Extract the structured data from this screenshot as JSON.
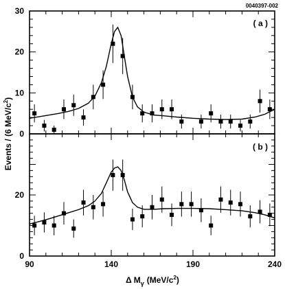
{
  "figure_id": "0040397-002",
  "ylabel_main": "Events / (6 MeV/c",
  "ylabel_sup": "2",
  "ylabel_close": ")",
  "xlabel_delta": "Δ",
  "xlabel_M": "M",
  "xlabel_sub": "γ",
  "xlabel_units": "(MeV/c",
  "xlabel_sup": "2",
  "xlabel_close": ")",
  "colors": {
    "ink": "#000000",
    "errorbar": "#000000",
    "marker": "#000000"
  },
  "chart_data": [
    {
      "type": "scatter",
      "panel_label": "( a )",
      "xlim": [
        90,
        240
      ],
      "ylim": [
        0,
        30
      ],
      "y_ticks": [
        "0",
        "10",
        "20",
        "30"
      ],
      "x": [
        93,
        99,
        105,
        111,
        117,
        123,
        129,
        135,
        141,
        147,
        153,
        159,
        165,
        171,
        177,
        183,
        189,
        195,
        201,
        207,
        213,
        219,
        225,
        231,
        237
      ],
      "series": [
        {
          "values": [
            5,
            2,
            1,
            6,
            7,
            4,
            9,
            12,
            22,
            19,
            9,
            5,
            5,
            6,
            6,
            3,
            null,
            3,
            5,
            3,
            3,
            2,
            3,
            8,
            6
          ],
          "errors": [
            2.2,
            1.4,
            1.0,
            2.4,
            2.6,
            2.0,
            3.0,
            3.5,
            4.7,
            4.4,
            3.0,
            2.2,
            2.2,
            2.4,
            2.4,
            1.7,
            null,
            1.7,
            2.2,
            1.7,
            1.7,
            1.4,
            1.7,
            2.8,
            2.4
          ]
        }
      ],
      "fit_curve": {
        "x": [
          90,
          96,
          102,
          108,
          114,
          120,
          126,
          130,
          134,
          137,
          140,
          142,
          144,
          146,
          148,
          150,
          153,
          156,
          160,
          166,
          172,
          180,
          190,
          200,
          210,
          220,
          228,
          234,
          240
        ],
        "y": [
          3.8,
          4.2,
          4.6,
          5.0,
          5.5,
          6.2,
          7.5,
          9.2,
          12.5,
          16.5,
          22.0,
          25.0,
          26.0,
          24.0,
          19.0,
          14.0,
          9.0,
          6.6,
          5.3,
          4.6,
          4.4,
          4.1,
          3.8,
          3.6,
          3.5,
          3.6,
          4.1,
          4.8,
          6.0
        ]
      }
    },
    {
      "type": "scatter",
      "panel_label": "( b )",
      "xlim": [
        90,
        240
      ],
      "ylim": [
        0,
        40
      ],
      "y_ticks": [
        "0",
        "20"
      ],
      "x": [
        93,
        99,
        105,
        111,
        117,
        123,
        129,
        135,
        141,
        147,
        153,
        159,
        165,
        171,
        177,
        183,
        189,
        195,
        201,
        207,
        213,
        219,
        225,
        231,
        237
      ],
      "series": [
        {
          "values": [
            10,
            11,
            10,
            14,
            9,
            17.5,
            16,
            17,
            26.5,
            26.5,
            12,
            13,
            16,
            18.5,
            13.5,
            17,
            17,
            15,
            10,
            18.5,
            17.5,
            17,
            13,
            14.5,
            13.5
          ],
          "errors": [
            3.2,
            3.3,
            3.2,
            3.7,
            3.0,
            4.2,
            4.0,
            4.1,
            5.1,
            5.1,
            3.5,
            3.6,
            4.0,
            4.3,
            3.7,
            4.1,
            4.1,
            3.9,
            3.2,
            4.3,
            4.2,
            4.1,
            3.6,
            3.8,
            3.7
          ]
        }
      ],
      "fit_curve": {
        "x": [
          90,
          96,
          102,
          108,
          114,
          120,
          126,
          130,
          134,
          137,
          140,
          142,
          144,
          146,
          148,
          150,
          153,
          156,
          160,
          166,
          172,
          180,
          190,
          200,
          210,
          220,
          228,
          234,
          240
        ],
        "y": [
          10.5,
          11.3,
          12.2,
          13.2,
          14.2,
          15.2,
          16.5,
          18.0,
          20.5,
          24.0,
          27.5,
          28.8,
          29.2,
          28.0,
          25.0,
          21.0,
          17.5,
          16.0,
          15.3,
          15.3,
          15.5,
          15.6,
          15.6,
          15.5,
          15.2,
          14.8,
          14.2,
          13.5,
          12.5
        ]
      }
    }
  ]
}
